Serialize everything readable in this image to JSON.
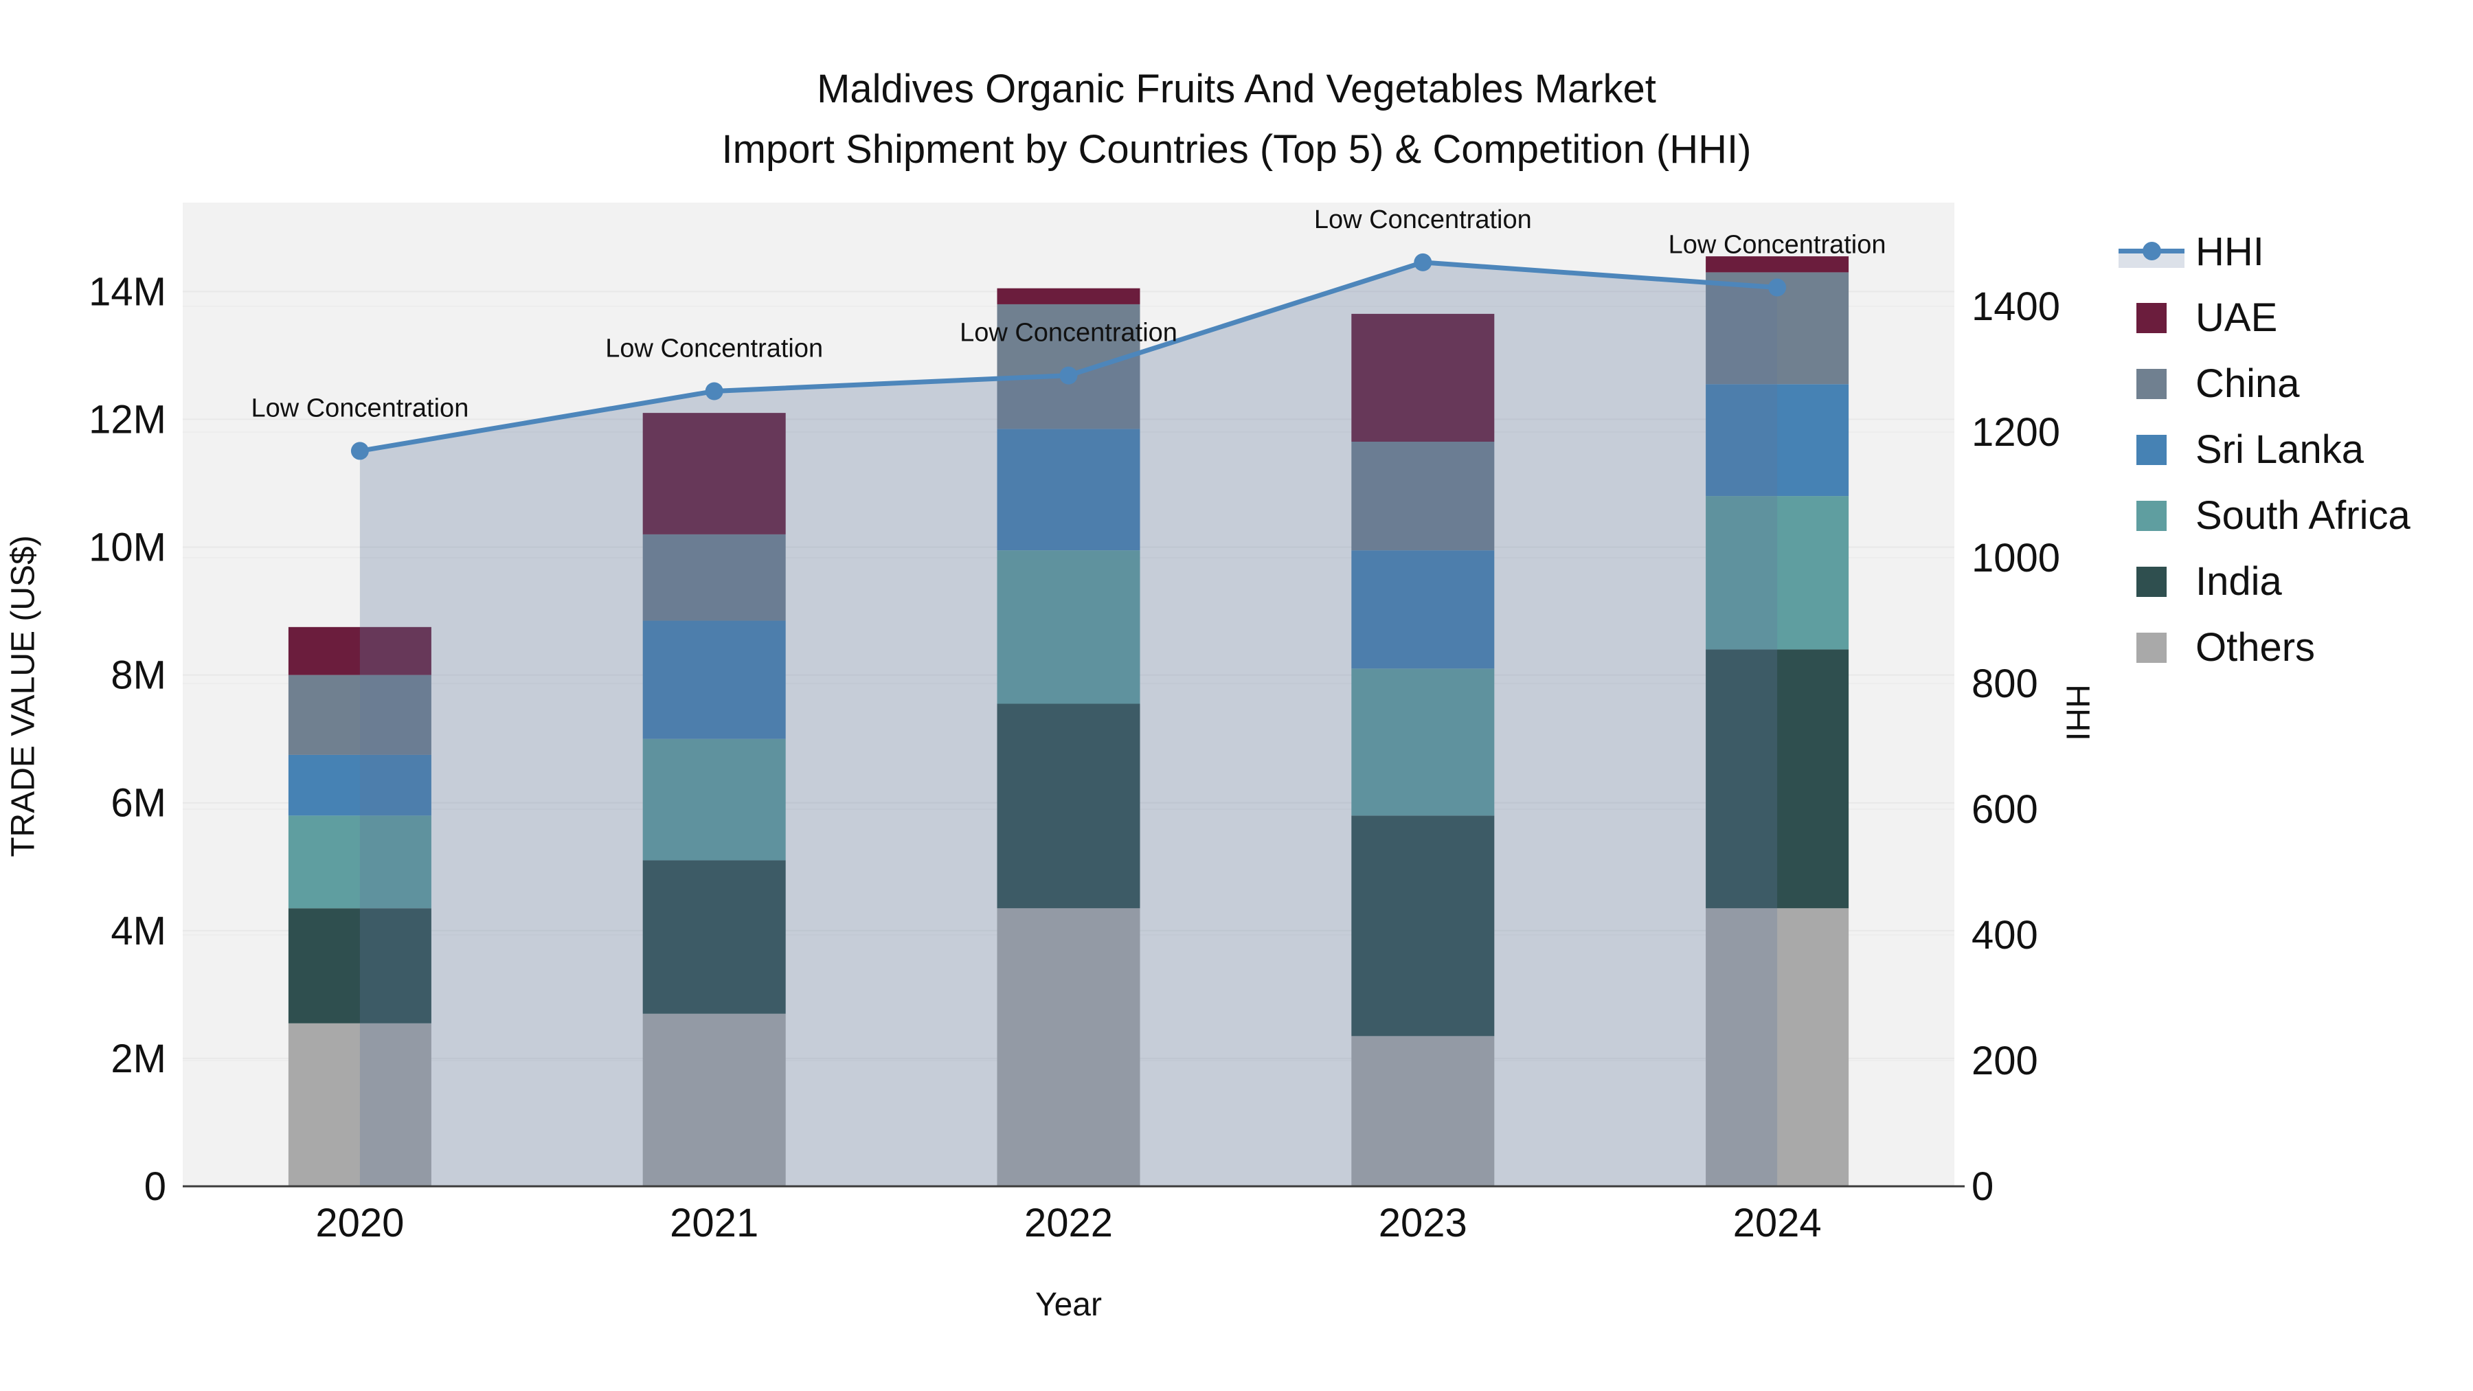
{
  "chart_data": {
    "type": "bar",
    "title_line1": "Maldives Organic Fruits And Vegetables Market",
    "title_line2": "Import Shipment by Countries (Top 5) & Competition (HHI)",
    "xlabel": "Year",
    "ylabel_left": "TRADE VALUE (US$)",
    "ylabel_right": "HHI",
    "categories": [
      "2020",
      "2021",
      "2022",
      "2023",
      "2024"
    ],
    "stack_order_bottom_to_top": [
      "Others",
      "India",
      "South Africa",
      "Sri Lanka",
      "China",
      "UAE"
    ],
    "series": [
      {
        "name": "UAE",
        "color": "#6b1d3d",
        "values_musd": [
          0.75,
          1.9,
          0.25,
          2.0,
          0.25
        ]
      },
      {
        "name": "China",
        "color": "#708090",
        "values_musd": [
          1.25,
          1.35,
          1.95,
          1.7,
          1.75
        ]
      },
      {
        "name": "Sri Lanka",
        "color": "#4682b4",
        "values_musd": [
          0.95,
          1.85,
          1.9,
          1.85,
          1.75
        ]
      },
      {
        "name": "South Africa",
        "color": "#5f9ea0",
        "values_musd": [
          1.45,
          1.9,
          2.4,
          2.3,
          2.4
        ]
      },
      {
        "name": "India",
        "color": "#2f4f4f",
        "values_musd": [
          1.8,
          2.4,
          3.2,
          3.45,
          4.05
        ]
      },
      {
        "name": "Others",
        "color": "#a9a9a9",
        "values_musd": [
          2.55,
          2.7,
          4.35,
          2.35,
          4.35
        ]
      }
    ],
    "bar_totals_musd": [
      8.75,
      12.1,
      14.05,
      13.65,
      14.55
    ],
    "hhi_line": {
      "name": "HHI",
      "color": "#4d86bb",
      "area_fill": "rgba(95,119,155,0.30)",
      "values": [
        1170,
        1265,
        1290,
        1470,
        1430
      ],
      "point_annotation": "Low Concentration"
    },
    "left_axis": {
      "title": "TRADE VALUE (US$)",
      "tick_values": [
        0,
        2,
        4,
        6,
        8,
        10,
        12,
        14
      ],
      "tick_labels": [
        "0",
        "2M",
        "4M",
        "6M",
        "8M",
        "10M",
        "12M",
        "14M"
      ],
      "range": [
        0,
        15.39
      ],
      "grid": true
    },
    "right_axis": {
      "title": "HHI",
      "tick_values": [
        0,
        200,
        400,
        600,
        800,
        1000,
        1200,
        1400
      ],
      "tick_labels": [
        "0",
        "200",
        "400",
        "600",
        "800",
        "1000",
        "1200",
        "1400"
      ],
      "range": [
        0,
        1565
      ],
      "grid": true
    },
    "legend": {
      "position": "right",
      "items": [
        "HHI",
        "UAE",
        "China",
        "Sri Lanka",
        "South Africa",
        "India",
        "Others"
      ]
    },
    "colors": {
      "plot_background": "#f2f2f2",
      "paper_background": "#ffffff",
      "gridline": "#e8e8e8",
      "axis_line": "#3c3c3c",
      "text": "#111111"
    }
  }
}
